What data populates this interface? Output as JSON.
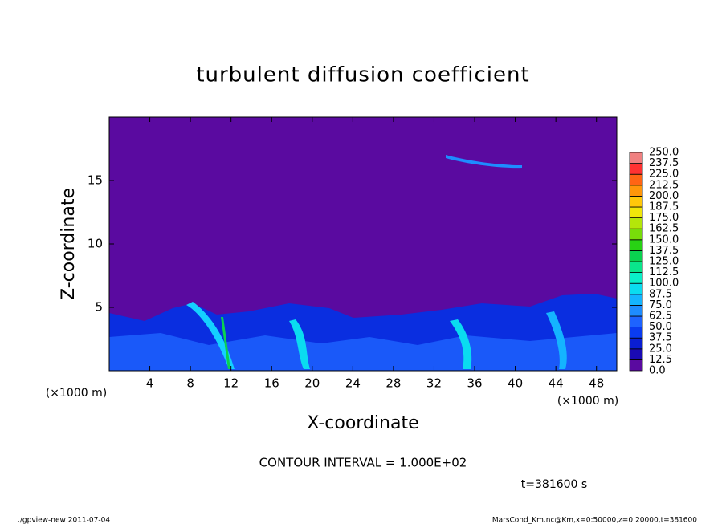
{
  "chart_data": {
    "type": "contour",
    "title": "turbulent diffusion coefficient",
    "xlabel": "X-coordinate",
    "ylabel": "Z-coordinate",
    "x_unit": "(×1000 m)",
    "xlim": [
      0,
      50
    ],
    "xticks": [
      4,
      8,
      12,
      16,
      20,
      24,
      28,
      32,
      36,
      40,
      44,
      48
    ],
    "ylim": [
      0,
      20
    ],
    "yticks": [
      5,
      10,
      15
    ],
    "colorbar_levels": [
      {
        "value": 0,
        "label": "0.0"
      },
      12.5,
      {
        "value": 25,
        "label": "25.0"
      },
      37.5,
      {
        "value": 50,
        "label": "50.0"
      },
      62.5,
      {
        "value": 75,
        "label": "75.0"
      },
      87.5,
      {
        "value": 100,
        "label": "100.0"
      },
      112.5,
      {
        "value": 125,
        "label": "125.0"
      },
      137.5,
      {
        "value": 150,
        "label": "150.0"
      },
      162.5,
      {
        "value": 175,
        "label": "175.0"
      },
      187.5,
      {
        "value": 200,
        "label": "200.0"
      },
      212.5,
      {
        "value": 225,
        "label": "225.0"
      },
      237.5,
      {
        "value": 250,
        "label": "250.0"
      }
    ],
    "colorbar_colors": [
      "#5a0aa0",
      "#1a0ab4",
      "#0a1ed2",
      "#0a3cf0",
      "#1e64ff",
      "#1e8cff",
      "#14b4ff",
      "#0adcf0",
      "#0af0c8",
      "#0ae68c",
      "#0ad250",
      "#28d214",
      "#78dc0a",
      "#b4e60a",
      "#f0e60a",
      "#ffc80a",
      "#ff960a",
      "#ff6414",
      "#ff3232",
      "#f08080"
    ],
    "contour_interval": "CONTOUR INTERVAL = 1.000E+02",
    "time_label": "t=381600 s",
    "footer_left": "./gpview-new  2011-07-04",
    "footer_right": "MarsCond_Km.nc@Km,x=0:50000,z=0:20000,t=381600"
  }
}
